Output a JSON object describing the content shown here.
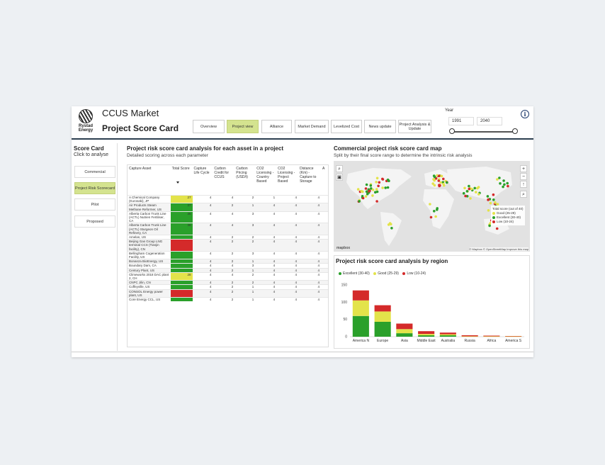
{
  "header": {
    "logo_text": "Rystad Energy",
    "app_title": "CCUS Market",
    "page_title": "Project Score Card",
    "nav": [
      {
        "label": "Overview",
        "active": false
      },
      {
        "label": "Project view",
        "active": true
      },
      {
        "label": "Alliance",
        "active": false
      },
      {
        "label": "Market Demand",
        "active": false
      },
      {
        "label": "Levelized Cost",
        "active": false
      },
      {
        "label": "News update",
        "active": false
      },
      {
        "label": "Project Analysis & Update",
        "active": false
      }
    ],
    "year_label": "Year",
    "year_from": "1991",
    "year_to": "2040",
    "info_icon": "i"
  },
  "sidebar": {
    "title": "Score Card",
    "subtitle": "Click to analyse",
    "buttons": [
      {
        "label": "Commercial",
        "active": false
      },
      {
        "label": "Project Risk Scorecard",
        "active": true
      },
      {
        "label": "Pilot",
        "active": false
      },
      {
        "label": "Proposed",
        "active": false
      }
    ]
  },
  "table_section": {
    "title": "Project risk score card analysis for each asset in a project",
    "subtitle": "Detailed scoring across each parameter",
    "columns": [
      "Capture Asset",
      "Total Score",
      "Capture Life Cycle",
      "Carbon Credit for CCUS",
      "Carbon Pricing (USD/t)",
      "CO2 Licensing - Country Based",
      "CO2 Licensing - Project Based",
      "Distance (Km) - Capture to Storage",
      "A"
    ],
    "rows": [
      {
        "asset": "A Chemical Company (Kurosaki), JP",
        "score": "27",
        "color": "#e3e34a",
        "cells": [
          "4",
          "4",
          "2",
          "1",
          "4",
          "4"
        ]
      },
      {
        "asset": "Air Products Steam Methane Reformer, US",
        "score": "37",
        "color": "#2aa02a",
        "cells": [
          "4",
          "2",
          "1",
          "4",
          "4",
          "4"
        ]
      },
      {
        "asset": "Alberta Carbon Trunk Line (ACTL) Nutrien Fertiliser, CA",
        "score": "36",
        "color": "#2aa02a",
        "cells": [
          "4",
          "4",
          "3",
          "4",
          "4",
          "4"
        ]
      },
      {
        "asset": "Alberta Carbon Trunk Line (ACTL) Sturgeon Oil Refinery, CA",
        "score": "36",
        "color": "#2aa02a",
        "cells": [
          "4",
          "4",
          "3",
          "4",
          "4",
          "4"
        ]
      },
      {
        "asset": "Amelan, US",
        "score": "",
        "color": "#2aa02a",
        "cells": [
          "4",
          "2",
          "2",
          "4",
          "4",
          "4"
        ]
      },
      {
        "asset": "Beijing Gas Group LNG terminal CCS (Tianjin facility), CN",
        "score": "",
        "color": "#d42a2a",
        "cells": [
          "4",
          "2",
          "2",
          "4",
          "4",
          "4"
        ]
      },
      {
        "asset": "Bellingham Cogeneration Facility, US",
        "score": "",
        "color": "#2aa02a",
        "cells": [
          "4",
          "2",
          "3",
          "4",
          "4",
          "4"
        ]
      },
      {
        "asset": "Bonanza BioEnergy, US",
        "score": "",
        "color": "#2aa02a",
        "cells": [
          "4",
          "2",
          "1",
          "4",
          "4",
          "4"
        ]
      },
      {
        "asset": "Boundary Dam, CA",
        "score": "",
        "color": "#2aa02a",
        "cells": [
          "4",
          "4",
          "3",
          "4",
          "4",
          "4"
        ]
      },
      {
        "asset": "Century Plant, US",
        "score": "",
        "color": "#2aa02a",
        "cells": [
          "4",
          "2",
          "1",
          "4",
          "4",
          "4"
        ]
      },
      {
        "asset": "Climeworks 2018 DAC plant 2, CH",
        "score": "28",
        "color": "#e3e34a",
        "cells": [
          "4",
          "4",
          "2",
          "4",
          "4",
          "4"
        ]
      },
      {
        "asset": "CNPC Jilin, CN",
        "score": "",
        "color": "#2aa02a",
        "cells": [
          "4",
          "2",
          "2",
          "4",
          "4",
          "4"
        ]
      },
      {
        "asset": "Coffeyville, US",
        "score": "",
        "color": "#2aa02a",
        "cells": [
          "4",
          "2",
          "1",
          "4",
          "4",
          "4"
        ]
      },
      {
        "asset": "CONSOL Energy power plant, US",
        "score": "",
        "color": "#d42a2a",
        "cells": [
          "4",
          "2",
          "1",
          "4",
          "4",
          "4"
        ]
      },
      {
        "asset": "Core Energy CCL, US",
        "score": "",
        "color": "#2aa02a",
        "cells": [
          "4",
          "2",
          "1",
          "4",
          "4",
          "4"
        ]
      }
    ]
  },
  "map_section": {
    "title": "Commercial project risk score card map",
    "subtitle": "Split by their final score range to determine the intrinsic risk analysis",
    "legend_title": "Total score (out of 40)",
    "legend": [
      {
        "label": "Good (25-29)",
        "color": "#e3e34a"
      },
      {
        "label": "Excellent (30-40)",
        "color": "#2aa02a"
      },
      {
        "label": "Low (10-24)",
        "color": "#d42a2a"
      }
    ],
    "attribution": "© Mapbox © OpenStreetMap Improve this map",
    "mapbox_label": "mapbox"
  },
  "chart_section": {
    "title": "Project risk score card analysis by region",
    "legend": [
      {
        "label": "Excellent (30-40)",
        "color": "#2aa02a"
      },
      {
        "label": "Good (25-29)",
        "color": "#e3e34a"
      },
      {
        "label": "Low (10-24)",
        "color": "#d42a2a"
      }
    ]
  },
  "chart_data": {
    "type": "bar",
    "stacked": true,
    "title": "Project risk score card analysis by region",
    "categories": [
      "America N",
      "Europe",
      "Asia",
      "Middle East",
      "Australia",
      "Russia",
      "Africa",
      "America S"
    ],
    "series": [
      {
        "name": "Excellent (30-40)",
        "color": "#2aa02a",
        "values": [
          60,
          43,
          10,
          4,
          4,
          0,
          0,
          0
        ]
      },
      {
        "name": "Good (25-29)",
        "color": "#e3e34a",
        "values": [
          45,
          30,
          12,
          4,
          3,
          1,
          1,
          1
        ]
      },
      {
        "name": "Low (10-24)",
        "color": "#d42a2a",
        "values": [
          29,
          18,
          16,
          8,
          5,
          3,
          2,
          1
        ]
      }
    ],
    "yticks": [
      0,
      50,
      100,
      150
    ],
    "ylim": [
      0,
      160
    ]
  }
}
